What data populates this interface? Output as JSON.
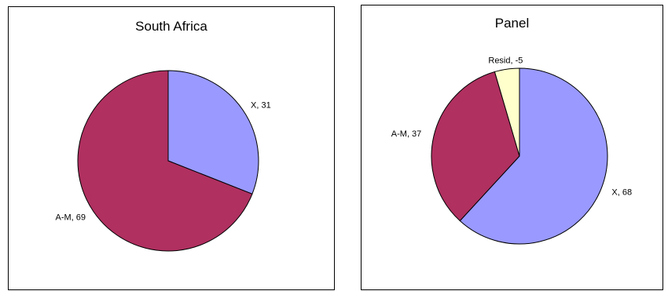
{
  "chart_data": [
    {
      "type": "pie",
      "title": "South Africa",
      "slices": [
        {
          "label": "X",
          "value": 31,
          "color": "#9999ff",
          "data_label": "X, 31"
        },
        {
          "label": "A-M",
          "value": 69,
          "color": "#b03060",
          "data_label": "A-M, 69"
        }
      ],
      "legend": "none"
    },
    {
      "type": "pie",
      "title": "Panel",
      "slices": [
        {
          "label": "X",
          "value": 68,
          "color": "#9999ff",
          "data_label": "X, 68"
        },
        {
          "label": "A-M",
          "value": 37,
          "color": "#b03060",
          "data_label": "A-M, 37"
        },
        {
          "label": "Resid",
          "value": -5,
          "color": "#ffffcc",
          "data_label": "Resid, -5"
        }
      ],
      "legend": "none"
    }
  ]
}
